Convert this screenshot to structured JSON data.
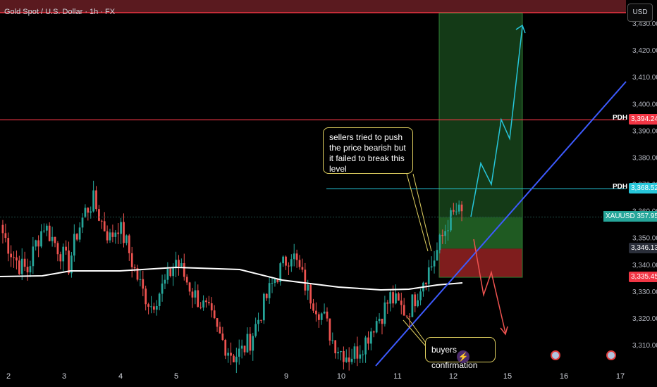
{
  "header": {
    "title": "Gold Spot / U.S. Dollar · 1h · FX",
    "currency_button": "USD"
  },
  "annotations": {
    "sellers_note": "sellers tried to push the price bearish but it failed to break this level",
    "buyers_note": "buyers confirmation"
  },
  "colors": {
    "bull": "#26a69a",
    "bear": "#ef5350",
    "ma": "#ffffff",
    "trendline": "#3d5afe",
    "resistance_red": "#f23645",
    "pdh_cyan": "#26c6da",
    "profit_zone": "#1b5e20",
    "stop_zone": "#7f1d1d"
  },
  "chart_data": {
    "type": "candlestick",
    "symbol": "XAUUSD",
    "timeframe": "1h",
    "x_tick_labels": [
      "2",
      "3",
      "4",
      "5",
      "9",
      "10",
      "11",
      "12",
      "15",
      "16",
      "17"
    ],
    "y_tick_labels": [
      "3,310.00",
      "3,320.00",
      "3,330.00",
      "3,340.00",
      "3,350.00",
      "3,360.00",
      "3,370.00",
      "3,380.00",
      "3,390.00",
      "3,400.00",
      "3,410.00",
      "3,420.00",
      "3,430.00"
    ],
    "ylim": [
      3303,
      3440
    ],
    "price_levels": [
      {
        "label": "PDH",
        "value": "3,394.24",
        "color": "#f23645"
      },
      {
        "label": "PDH",
        "value": "3,368.52",
        "color": "#26c6da"
      },
      {
        "label": "XAUUSD",
        "value": "3,357.95",
        "color": "#26a69a"
      },
      {
        "label": "",
        "value": "3,346.13",
        "color": "#2a2e39"
      },
      {
        "label": "",
        "value": "3,335.45",
        "color": "#f23645"
      }
    ],
    "resistance_zone_top": 3440,
    "position": {
      "entry": 3346.13,
      "stop": 3335.45,
      "target": 3434
    },
    "candles_close_approx": [
      3352,
      3345,
      3340,
      3338,
      3348,
      3355,
      3350,
      3345,
      3340,
      3352,
      3360,
      3364,
      3356,
      3350,
      3355,
      3348,
      3338,
      3330,
      3325,
      3330,
      3335,
      3342,
      3336,
      3330,
      3326,
      3322,
      3315,
      3310,
      3306,
      3308,
      3312,
      3320,
      3328,
      3335,
      3340,
      3345,
      3338,
      3330,
      3325,
      3320,
      3312,
      3308,
      3306,
      3308,
      3312,
      3318,
      3322,
      3328,
      3325,
      3322,
      3328,
      3335,
      3340,
      3348,
      3356,
      3360,
      3358
    ]
  }
}
